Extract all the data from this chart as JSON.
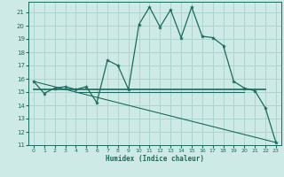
{
  "xlabel": "Humidex (Indice chaleur)",
  "bg_color": "#ceeae6",
  "grid_color": "#aed4cf",
  "line_color": "#1a6b5e",
  "xlim": [
    -0.5,
    23.5
  ],
  "ylim": [
    11,
    21.8
  ],
  "yticks": [
    11,
    12,
    13,
    14,
    15,
    16,
    17,
    18,
    19,
    20,
    21
  ],
  "xticks": [
    0,
    1,
    2,
    3,
    4,
    5,
    6,
    7,
    8,
    9,
    10,
    11,
    12,
    13,
    14,
    15,
    16,
    17,
    18,
    19,
    20,
    21,
    22,
    23
  ],
  "main_series": [
    [
      0,
      15.8
    ],
    [
      1,
      14.9
    ],
    [
      2,
      15.3
    ],
    [
      3,
      15.4
    ],
    [
      4,
      15.2
    ],
    [
      5,
      15.4
    ],
    [
      6,
      14.2
    ],
    [
      7,
      17.4
    ],
    [
      8,
      17.0
    ],
    [
      9,
      15.2
    ],
    [
      10,
      20.1
    ],
    [
      11,
      21.4
    ],
    [
      12,
      19.9
    ],
    [
      13,
      21.2
    ],
    [
      14,
      19.1
    ],
    [
      15,
      21.4
    ],
    [
      16,
      19.2
    ],
    [
      17,
      19.1
    ],
    [
      18,
      18.5
    ],
    [
      19,
      15.8
    ],
    [
      20,
      15.3
    ],
    [
      21,
      15.1
    ],
    [
      22,
      13.8
    ],
    [
      23,
      11.2
    ]
  ],
  "trend_line": [
    [
      0,
      15.8
    ],
    [
      23,
      11.2
    ]
  ],
  "horiz_line1_start": 0,
  "horiz_line1_end": 22,
  "horiz_line1_y": 15.2,
  "horiz_line2_start": 4,
  "horiz_line2_end": 20,
  "horiz_line2_y": 15.0
}
